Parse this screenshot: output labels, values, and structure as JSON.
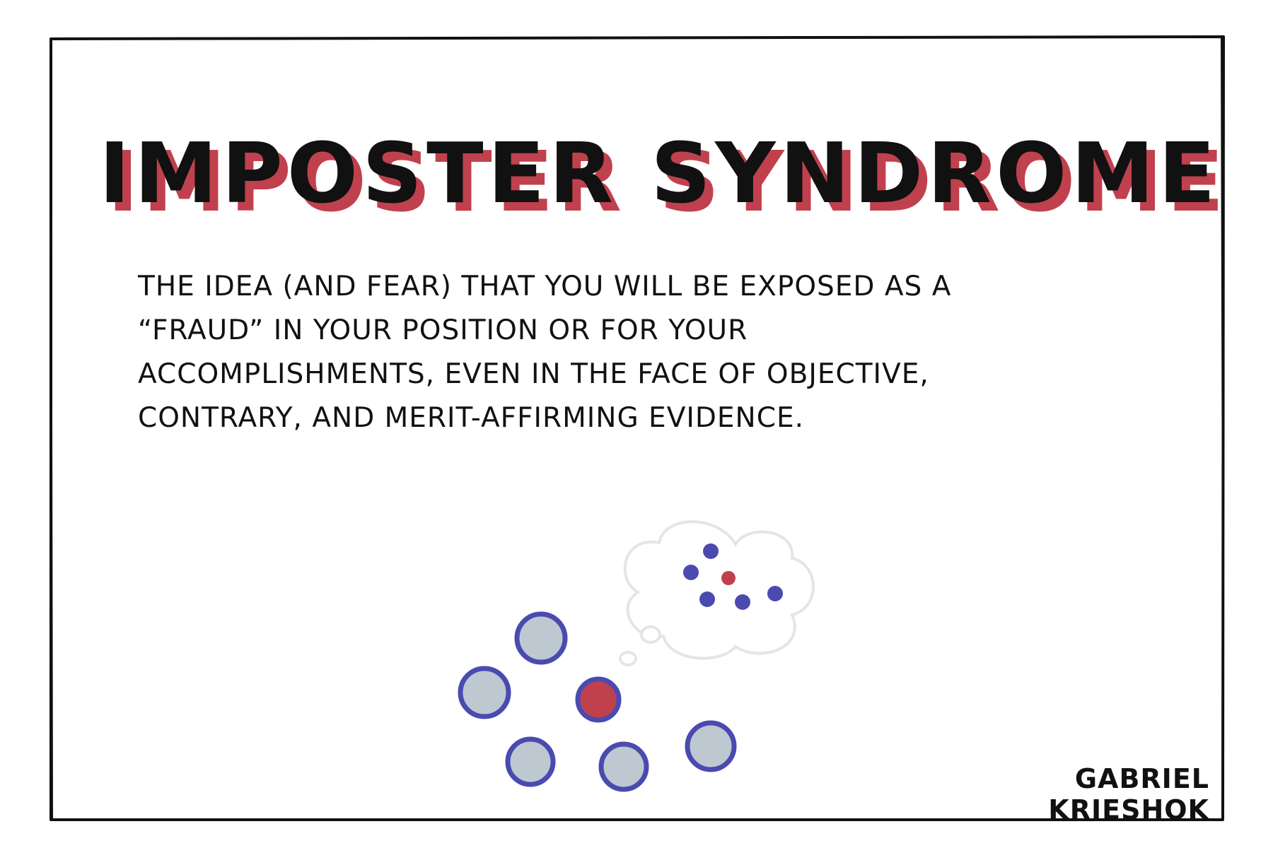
{
  "title": "IMPOSTER SYNDROME",
  "definition": "THE IDEA (AND FEAR) THAT YOU WILL BE EXPOSED AS A “FRAUD” IN YOUR POSITION OR FOR YOUR ACCOMPLISHMENTS, EVEN IN THE FACE OF OBJECTIVE, CONTRARY, AND MERIT-AFFIRMING EVIDENCE.",
  "author": "GABRIEL KRIESHOK",
  "colors": {
    "title_shadow": "#c0414d",
    "ink": "#111111",
    "circle_outline": "#4a4ab0",
    "circle_fill": "#bec8d0",
    "highlight": "#c0414d",
    "thought_outline": "#e3e6e6"
  },
  "icons": {
    "group": "group-of-people-icon",
    "self": "self-dot-icon",
    "thought": "thought-bubble-icon"
  }
}
